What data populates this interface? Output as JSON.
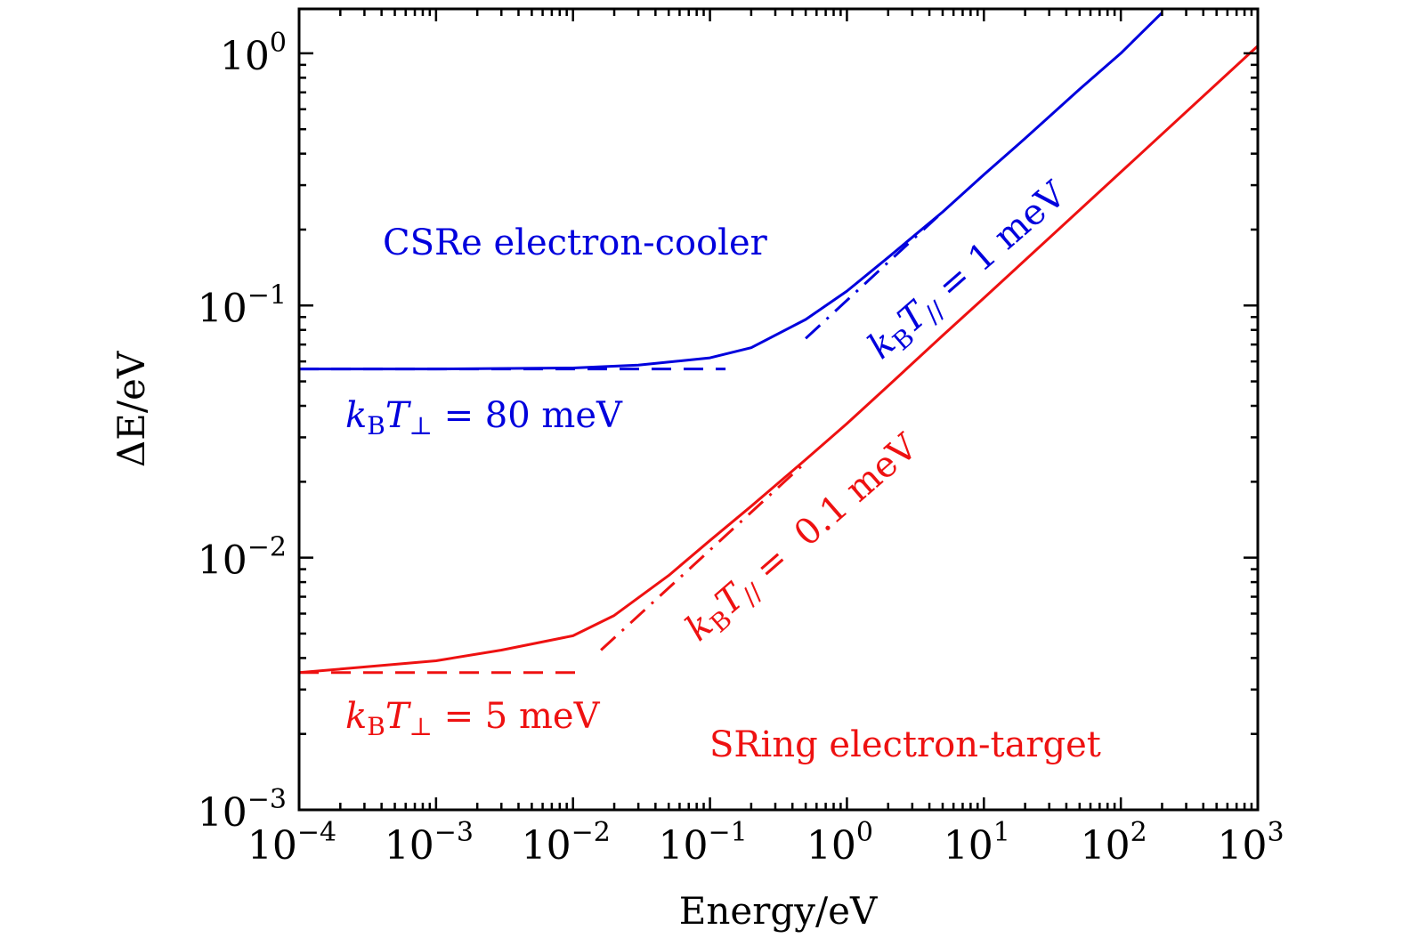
{
  "chart_data": {
    "type": "line",
    "title": "",
    "xlabel": "Energy/eV",
    "ylabel": "ΔE/eV",
    "xscale": "log",
    "yscale": "log",
    "xlim": [
      0.0001,
      1000
    ],
    "ylim": [
      0.001,
      1.5
    ],
    "grid": false,
    "x_ticks": [
      {
        "base": "10",
        "exp": "−4",
        "value": 0.0001
      },
      {
        "base": "10",
        "exp": "−3",
        "value": 0.001
      },
      {
        "base": "10",
        "exp": "−2",
        "value": 0.01
      },
      {
        "base": "10",
        "exp": "−1",
        "value": 0.1
      },
      {
        "base": "10",
        "exp": "0",
        "value": 1
      },
      {
        "base": "10",
        "exp": "1",
        "value": 10
      },
      {
        "base": "10",
        "exp": "2",
        "value": 100
      },
      {
        "base": "10",
        "exp": "3",
        "value": 1000
      }
    ],
    "y_ticks": [
      {
        "base": "10",
        "exp": "−3",
        "value": 0.001
      },
      {
        "base": "10",
        "exp": "−2",
        "value": 0.01
      },
      {
        "base": "10",
        "exp": "−1",
        "value": 0.1
      },
      {
        "base": "10",
        "exp": "0",
        "value": 1
      }
    ],
    "series": [
      {
        "name": "CSRe electron-cooler total",
        "color": "#0000dd",
        "style": "solid",
        "x": [
          0.0001,
          0.001,
          0.01,
          0.03,
          0.1,
          0.2,
          0.5,
          1,
          2,
          5,
          10,
          20,
          50,
          100,
          200
        ],
        "values": [
          0.056,
          0.056,
          0.0565,
          0.058,
          0.062,
          0.068,
          0.088,
          0.114,
          0.155,
          0.235,
          0.33,
          0.46,
          0.72,
          1.0,
          1.45
        ]
      },
      {
        "name": "CSRe kBT⊥ = 80 meV asymptote",
        "color": "#0000dd",
        "style": "dashed",
        "x": [
          0.0001,
          0.13
        ],
        "values": [
          0.056,
          0.056
        ]
      },
      {
        "name": "CSRe kBT// = 1 meV asymptote",
        "color": "#0000dd",
        "style": "dashdot",
        "x": [
          0.5,
          5
        ],
        "values": [
          0.074,
          0.235
        ]
      },
      {
        "name": "SRing electron-target total",
        "color": "#ee1111",
        "style": "solid",
        "x": [
          0.0001,
          0.001,
          0.003,
          0.01,
          0.02,
          0.05,
          0.1,
          0.2,
          0.5,
          1,
          2,
          5,
          10,
          100,
          1000
        ],
        "values": [
          0.0035,
          0.0039,
          0.0043,
          0.0049,
          0.0059,
          0.0085,
          0.0117,
          0.016,
          0.0245,
          0.034,
          0.048,
          0.076,
          0.107,
          0.338,
          1.07
        ]
      },
      {
        "name": "SRing kBT⊥ = 5 meV asymptote",
        "color": "#ee1111",
        "style": "dashed",
        "x": [
          0.0001,
          0.012
        ],
        "values": [
          0.0035,
          0.0035
        ]
      },
      {
        "name": "SRing kBT// = 0.1 meV asymptote",
        "color": "#ee1111",
        "style": "dashdot",
        "x": [
          0.016,
          0.5
        ],
        "values": [
          0.0043,
          0.0239
        ]
      }
    ],
    "annotations": [
      {
        "text": "CSRe electron-cooler",
        "color": "#0000dd"
      },
      {
        "text_parts": [
          "k",
          "B",
          "T",
          "⊥",
          " = 80 meV"
        ],
        "color": "#0000dd"
      },
      {
        "text_parts": [
          "k",
          "B",
          "T",
          "//",
          " = 1 meV"
        ],
        "color": "#0000dd"
      },
      {
        "text_parts": [
          "k",
          "B",
          "T",
          "⊥",
          " = 5 meV"
        ],
        "color": "#ee1111"
      },
      {
        "text_parts": [
          "k",
          "B",
          "T",
          "//",
          " =  0.1 meV"
        ],
        "color": "#ee1111"
      },
      {
        "text": "SRing electron-target",
        "color": "#ee1111"
      }
    ]
  }
}
